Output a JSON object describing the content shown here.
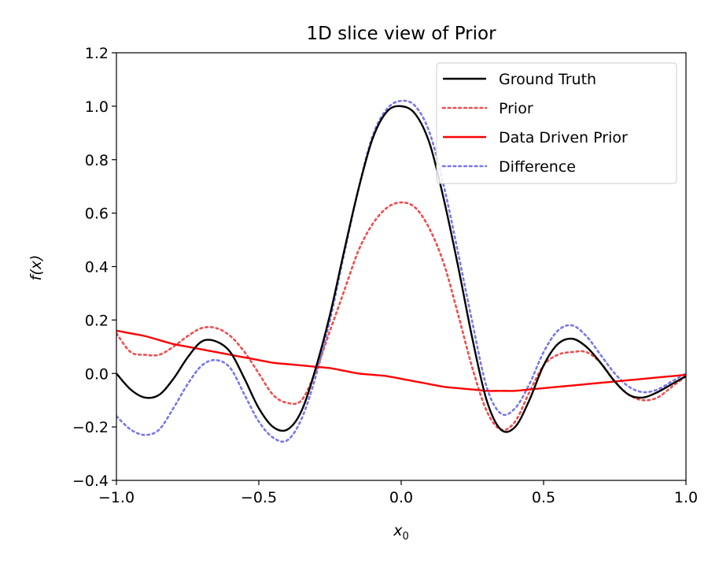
{
  "chart_data": {
    "type": "line",
    "title": "1D slice view of Prior",
    "xlabel": "x",
    "xlabel_sub": "0",
    "ylabel": "f(x)",
    "xlim": [
      -1.0,
      1.0
    ],
    "ylim": [
      -0.4,
      1.2
    ],
    "x_ticks": [
      -1.0,
      -0.5,
      0.0,
      0.5,
      1.0
    ],
    "x_tick_labels": [
      "−1.0",
      "−0.5",
      "0.0",
      "0.5",
      "1.0"
    ],
    "y_ticks": [
      -0.4,
      -0.2,
      0.0,
      0.2,
      0.4,
      0.6,
      0.8,
      1.0,
      1.2
    ],
    "y_tick_labels": [
      "−0.4",
      "−0.2",
      "0.0",
      "0.2",
      "0.4",
      "0.6",
      "0.8",
      "1.0",
      "1.2"
    ],
    "grid": false,
    "legend": "top-right",
    "x": [
      -1.0,
      -0.95,
      -0.9,
      -0.85,
      -0.8,
      -0.75,
      -0.7,
      -0.65,
      -0.6,
      -0.55,
      -0.5,
      -0.45,
      -0.4,
      -0.35,
      -0.3,
      -0.25,
      -0.2,
      -0.15,
      -0.1,
      -0.05,
      0.0,
      0.05,
      0.1,
      0.15,
      0.2,
      0.25,
      0.3,
      0.35,
      0.4,
      0.45,
      0.5,
      0.55,
      0.6,
      0.65,
      0.7,
      0.75,
      0.8,
      0.85,
      0.9,
      0.95,
      1.0
    ],
    "series": [
      {
        "name": "Ground Truth",
        "color": "#000000",
        "style": "solid",
        "values": [
          0.0,
          -0.06,
          -0.09,
          -0.08,
          -0.02,
          0.06,
          0.12,
          0.12,
          0.08,
          -0.02,
          -0.13,
          -0.2,
          -0.21,
          -0.14,
          0.02,
          0.22,
          0.46,
          0.69,
          0.88,
          0.98,
          1.0,
          0.97,
          0.86,
          0.65,
          0.4,
          0.13,
          -0.1,
          -0.21,
          -0.2,
          -0.1,
          0.03,
          0.11,
          0.13,
          0.1,
          0.04,
          -0.03,
          -0.08,
          -0.09,
          -0.07,
          -0.04,
          -0.01
        ]
      },
      {
        "name": "Prior",
        "color": "#f24c4c",
        "style": "dotted",
        "values": [
          0.15,
          0.08,
          0.07,
          0.07,
          0.1,
          0.14,
          0.17,
          0.17,
          0.14,
          0.08,
          0.0,
          -0.08,
          -0.11,
          -0.1,
          0.01,
          0.16,
          0.31,
          0.46,
          0.56,
          0.62,
          0.64,
          0.62,
          0.54,
          0.41,
          0.22,
          0.02,
          -0.14,
          -0.21,
          -0.18,
          -0.07,
          0.03,
          0.07,
          0.08,
          0.08,
          0.04,
          -0.03,
          -0.08,
          -0.1,
          -0.09,
          -0.05,
          -0.01
        ]
      },
      {
        "name": "Data Driven Prior",
        "color": "#ff0000",
        "style": "solid",
        "values": [
          0.16,
          0.15,
          0.14,
          0.125,
          0.11,
          0.1,
          0.09,
          0.08,
          0.07,
          0.06,
          0.05,
          0.04,
          0.035,
          0.03,
          0.025,
          0.02,
          0.01,
          0.0,
          -0.005,
          -0.01,
          -0.02,
          -0.03,
          -0.04,
          -0.05,
          -0.055,
          -0.06,
          -0.065,
          -0.065,
          -0.065,
          -0.06,
          -0.055,
          -0.05,
          -0.045,
          -0.04,
          -0.035,
          -0.03,
          -0.025,
          -0.02,
          -0.015,
          -0.01,
          -0.005
        ]
      },
      {
        "name": "Difference",
        "color": "#7777ee",
        "style": "dotted",
        "values": [
          -0.16,
          -0.21,
          -0.23,
          -0.21,
          -0.13,
          -0.04,
          0.03,
          0.05,
          0.02,
          -0.08,
          -0.18,
          -0.24,
          -0.25,
          -0.17,
          -0.01,
          0.2,
          0.45,
          0.69,
          0.89,
          0.99,
          1.02,
          1.0,
          0.9,
          0.7,
          0.45,
          0.19,
          -0.05,
          -0.15,
          -0.13,
          -0.04,
          0.08,
          0.16,
          0.18,
          0.14,
          0.07,
          0.0,
          -0.05,
          -0.07,
          -0.06,
          -0.03,
          0.0
        ]
      }
    ]
  }
}
